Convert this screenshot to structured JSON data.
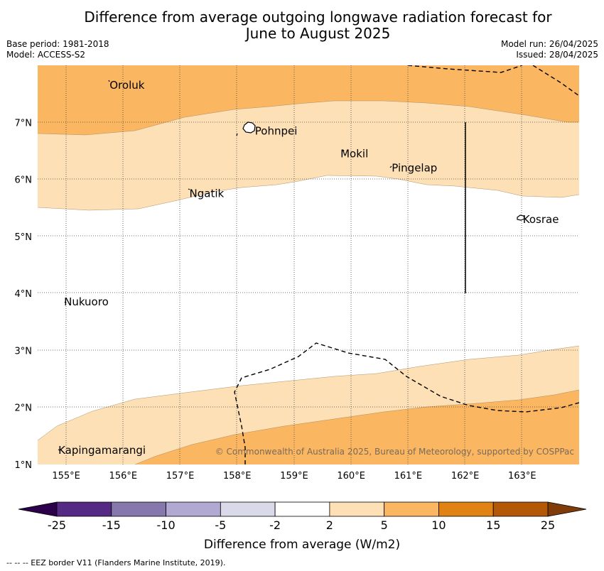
{
  "title": {
    "line1": "Difference from average outgoing longwave radiation forecast for",
    "line2": "June to August 2025"
  },
  "meta": {
    "base_period": "Base period: 1981-2018",
    "model": "Model: ACCESS-S2",
    "model_run": "Model run: 26/04/2025",
    "issued": "Issued: 28/04/2025"
  },
  "map": {
    "lon_range": [
      154.5,
      164.0
    ],
    "lat_range": [
      1.0,
      8.0
    ],
    "lon_ticks": [
      "155°E",
      "156°E",
      "157°E",
      "158°E",
      "159°E",
      "160°E",
      "161°E",
      "162°E",
      "163°E"
    ],
    "lat_ticks": [
      "1°N",
      "2°N",
      "3°N",
      "4°N",
      "5°N",
      "6°N",
      "7°N"
    ],
    "places": [
      {
        "name": "Oroluk",
        "lon": 155.75,
        "lat": 7.65
      },
      {
        "name": "Pohnpei",
        "lon": 158.3,
        "lat": 6.85
      },
      {
        "name": "Mokil",
        "lon": 159.8,
        "lat": 6.45
      },
      {
        "name": "Pingelap",
        "lon": 160.7,
        "lat": 6.2
      },
      {
        "name": "Ngatik",
        "lon": 157.15,
        "lat": 5.75
      },
      {
        "name": "Kosrae",
        "lon": 163.0,
        "lat": 5.3
      },
      {
        "name": "Nukuoro",
        "lon": 154.95,
        "lat": 3.85
      },
      {
        "name": "Kapingamarangi",
        "lon": 154.85,
        "lat": 1.25
      }
    ],
    "copyright": "© Commonwealth of Australia 2025, Bureau of Meteorology, supported by COSPPac"
  },
  "colorbar": {
    "ticks": [
      "-25",
      "-15",
      "-10",
      "-5",
      "-2",
      "2",
      "5",
      "10",
      "15",
      "25"
    ],
    "colors": [
      "#552a85",
      "#8677ad",
      "#b1a9d1",
      "#d9d9ea",
      "#ffffff",
      "#fde0b5",
      "#fbb662",
      "#e08214",
      "#b35806"
    ],
    "low_extend_color": "#2d004b",
    "high_extend_color": "#7f3b08",
    "label": "Difference from average (W/m2)"
  },
  "footer": "--  --  -- EEZ border V11 (Flanders Marine Institute, 2019)."
}
